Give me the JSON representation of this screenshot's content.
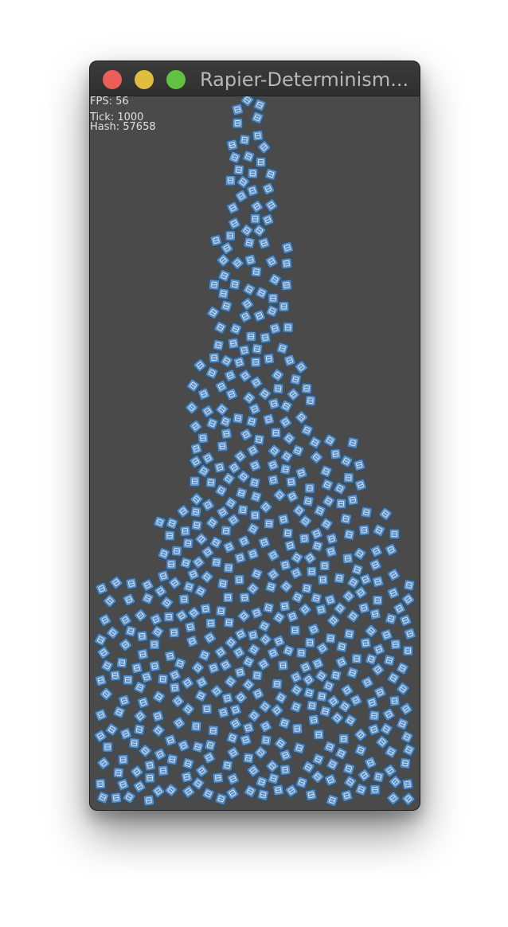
{
  "window": {
    "title": "Rapier-Determinism...",
    "buttons": {
      "close_color": "#ec5f57",
      "minimize_color": "#e1bd3f",
      "zoom_color": "#60c240"
    },
    "background_color": "#4a4a4a"
  },
  "stats": {
    "fps": "FPS: 56",
    "tick": "Tick: 1000",
    "hash": "Hash: 57658"
  },
  "simulation": {
    "body_count": 520,
    "body_shape": "square",
    "body_fill": "#5f90c5",
    "body_stroke": "#2d5679",
    "body_detail": "#d8e8f6",
    "background": "#4a4a4a"
  }
}
